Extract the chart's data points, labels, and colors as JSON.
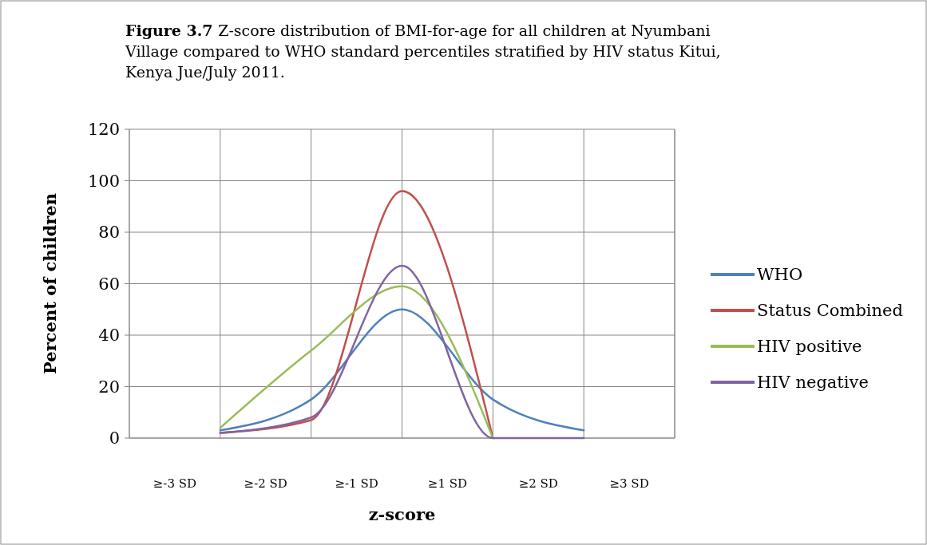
{
  "chart_data": {
    "type": "line",
    "title": "Figure 3.7 Z-score distribution of BMI-for-age for all children at Nyumbani Village compared to WHO standard percentiles stratified by HIV status Kitui, Kenya Jue/July 2011.",
    "xlabel": "z-score",
    "ylabel": "Percent of children",
    "categories": [
      "≥-3 SD",
      null,
      "≥-2 SD",
      null,
      "≥-1 SD",
      null,
      "≥1 SD",
      null,
      "≥2 SD",
      null,
      "≥3 SD"
    ],
    "series": [
      {
        "name": "WHO",
        "color": "#4f81bd",
        "values": [
          null,
          3,
          null,
          15,
          null,
          50,
          null,
          15,
          null,
          3,
          null
        ]
      },
      {
        "name": "Status Combined",
        "color": "#c0504d",
        "values": [
          null,
          2,
          null,
          7,
          null,
          96,
          null,
          0,
          null,
          null,
          null
        ]
      },
      {
        "name": "HIV positive",
        "color": "#9bbb59",
        "values": [
          null,
          4,
          null,
          34,
          null,
          59,
          null,
          0,
          null,
          null,
          null
        ]
      },
      {
        "name": "HIV negative",
        "color": "#8064a2",
        "values": [
          null,
          2,
          null,
          8,
          null,
          67,
          null,
          0,
          null,
          0,
          null
        ]
      }
    ],
    "ylim": [
      0,
      120
    ],
    "yticks": [
      0,
      20,
      40,
      60,
      80,
      100,
      120
    ],
    "grid": true,
    "legend": "right",
    "marker": "none",
    "line_style": "solid"
  }
}
